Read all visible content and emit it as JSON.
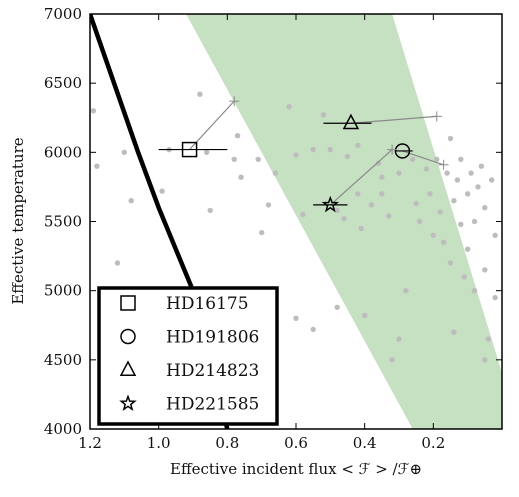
{
  "chart_data": {
    "type": "scatter",
    "xlabel": "Effective incident flux < ℱ > /ℱ⊕",
    "ylabel": "Effective temperature",
    "xlim": [
      1.2,
      0.0
    ],
    "ylim": [
      4000,
      7000
    ],
    "x_ticks": [
      1.2,
      1.0,
      0.8,
      0.6,
      0.4,
      0.2
    ],
    "x_tick_labels": [
      "1.2",
      "1.0",
      "0.8",
      "0.6",
      "0.4",
      "0.2"
    ],
    "y_ticks": [
      4000,
      4500,
      5000,
      5500,
      6000,
      6500,
      7000
    ],
    "y_tick_labels": [
      "4000",
      "4500",
      "5000",
      "5500",
      "6000",
      "6500",
      "7000"
    ],
    "legend_position": "bottom-left",
    "colors": {
      "band": "#c6e0c2",
      "background_points": "#bdbdbd",
      "boundary_line": "#000000",
      "connector": "#8a8a8a"
    },
    "habitable_band": {
      "upper_edge": [
        [
          0.92,
          7000
        ],
        [
          0.26,
          4000
        ]
      ],
      "lower_edge": [
        [
          0.32,
          7000
        ],
        [
          -0.05,
          4000
        ]
      ]
    },
    "boundary_curve": [
      [
        1.2,
        7000
      ],
      [
        1.06,
        6000
      ],
      [
        1.0,
        5600
      ],
      [
        0.95,
        5300
      ],
      [
        0.9,
        5000
      ],
      [
        0.8,
        4000
      ]
    ],
    "background_points": [
      [
        1.19,
        6300
      ],
      [
        1.18,
        5900
      ],
      [
        1.1,
        6000
      ],
      [
        1.08,
        5650
      ],
      [
        1.12,
        5200
      ],
      [
        0.99,
        5720
      ],
      [
        0.97,
        6020
      ],
      [
        0.88,
        6420
      ],
      [
        0.86,
        6000
      ],
      [
        0.85,
        5580
      ],
      [
        0.78,
        5950
      ],
      [
        0.77,
        6120
      ],
      [
        0.76,
        5820
      ],
      [
        0.71,
        5950
      ],
      [
        0.7,
        5420
      ],
      [
        0.68,
        5620
      ],
      [
        0.66,
        5850
      ],
      [
        0.62,
        6330
      ],
      [
        0.6,
        5980
      ],
      [
        0.58,
        5550
      ],
      [
        0.55,
        6020
      ],
      [
        0.52,
        6270
      ],
      [
        0.5,
        6020
      ],
      [
        0.48,
        5580
      ],
      [
        0.46,
        5520
      ],
      [
        0.45,
        5970
      ],
      [
        0.42,
        6050
      ],
      [
        0.42,
        5700
      ],
      [
        0.41,
        5450
      ],
      [
        0.4,
        4820
      ],
      [
        0.38,
        5620
      ],
      [
        0.36,
        5920
      ],
      [
        0.35,
        5820
      ],
      [
        0.35,
        5700
      ],
      [
        0.33,
        5540
      ],
      [
        0.3,
        5850
      ],
      [
        0.28,
        5000
      ],
      [
        0.26,
        5950
      ],
      [
        0.25,
        5630
      ],
      [
        0.24,
        5500
      ],
      [
        0.22,
        5880
      ],
      [
        0.21,
        5700
      ],
      [
        0.2,
        5400
      ],
      [
        0.19,
        5950
      ],
      [
        0.18,
        5570
      ],
      [
        0.17,
        5350
      ],
      [
        0.16,
        5850
      ],
      [
        0.15,
        6100
      ],
      [
        0.15,
        5200
      ],
      [
        0.14,
        5650
      ],
      [
        0.13,
        5800
      ],
      [
        0.12,
        5950
      ],
      [
        0.12,
        5480
      ],
      [
        0.11,
        5100
      ],
      [
        0.1,
        5700
      ],
      [
        0.1,
        5300
      ],
      [
        0.09,
        5850
      ],
      [
        0.08,
        5500
      ],
      [
        0.08,
        5000
      ],
      [
        0.07,
        5750
      ],
      [
        0.06,
        5900
      ],
      [
        0.05,
        5600
      ],
      [
        0.05,
        5150
      ],
      [
        0.04,
        4650
      ],
      [
        0.03,
        5800
      ],
      [
        0.02,
        5400
      ],
      [
        0.02,
        4950
      ],
      [
        0.6,
        4800
      ],
      [
        0.55,
        4720
      ],
      [
        0.48,
        4880
      ],
      [
        0.7,
        4920
      ],
      [
        0.32,
        4500
      ],
      [
        0.3,
        4650
      ],
      [
        0.14,
        4700
      ],
      [
        0.05,
        4500
      ]
    ],
    "series": [
      {
        "name": "HD16175",
        "marker": "square",
        "x": 0.91,
        "y": 6020,
        "xerr": [
          1.0,
          0.8
        ],
        "track_end": [
          0.78,
          6370
        ]
      },
      {
        "name": "HD191806",
        "marker": "circle",
        "x": 0.29,
        "y": 6010,
        "xerr": [
          0.31,
          0.26
        ],
        "track_end": [
          0.17,
          5910
        ]
      },
      {
        "name": "HD214823",
        "marker": "triangle",
        "x": 0.44,
        "y": 6210,
        "xerr": [
          0.52,
          0.38
        ],
        "track_end": [
          0.19,
          6260
        ]
      },
      {
        "name": "HD221585",
        "marker": "star",
        "x": 0.5,
        "y": 5620,
        "xerr": [
          0.55,
          0.45
        ],
        "track_end": [
          0.32,
          6020
        ]
      }
    ]
  }
}
